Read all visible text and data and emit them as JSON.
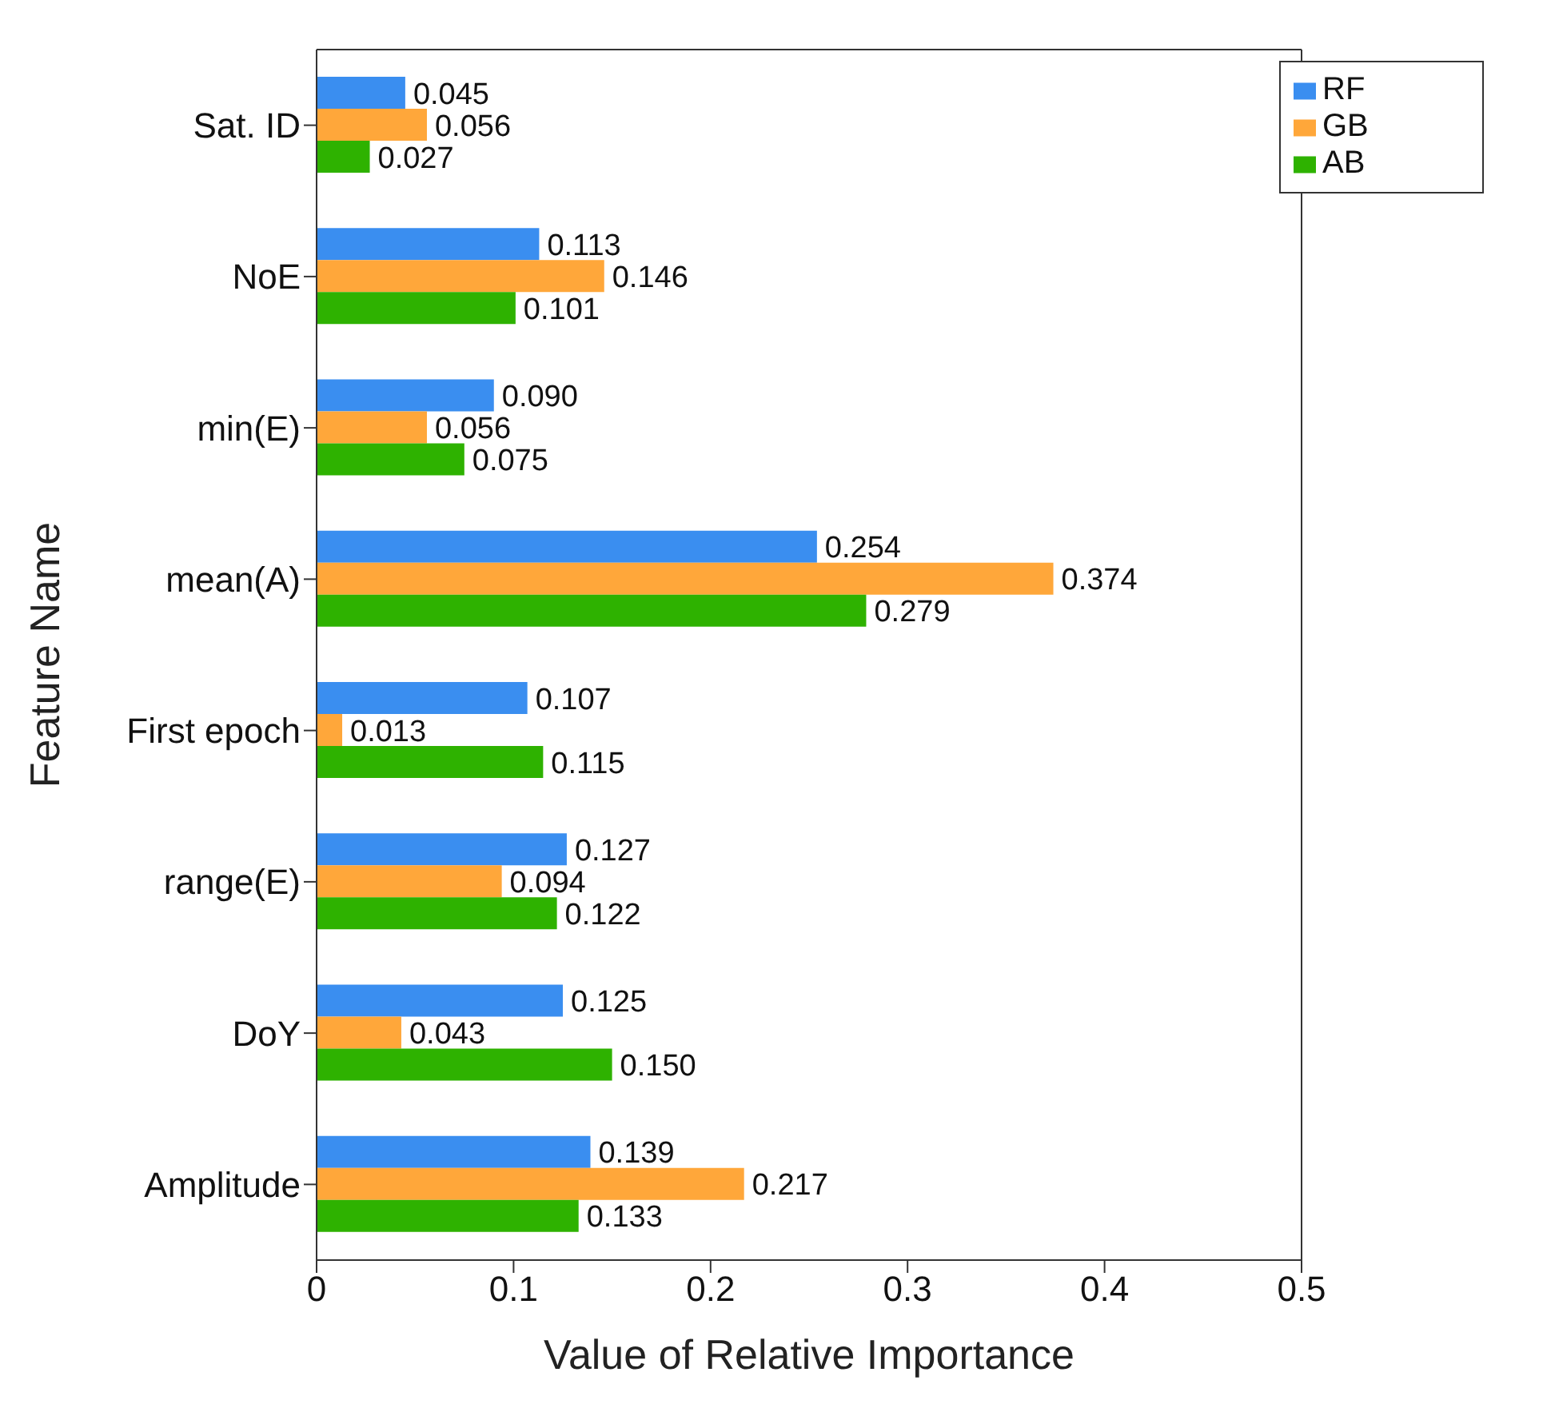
{
  "chart_data": {
    "type": "bar",
    "orientation": "horizontal",
    "xlabel": "Value of Relative Importance",
    "ylabel": "Feature Name",
    "categories": [
      "Sat. ID",
      "NoE",
      "min(E)",
      "mean(A)",
      "First epoch",
      "range(E)",
      "DoY",
      "Amplitude"
    ],
    "series": [
      {
        "name": "RF",
        "color": "#3a8ef0",
        "values": [
          0.045,
          0.113,
          0.09,
          0.254,
          0.107,
          0.127,
          0.125,
          0.139
        ],
        "value_labels": [
          "0.045",
          "0.113",
          "0.090",
          "0.254",
          "0.107",
          "0.127",
          "0.125",
          "0.139"
        ]
      },
      {
        "name": "GB",
        "color": "#ffa73a",
        "values": [
          0.056,
          0.146,
          0.056,
          0.374,
          0.013,
          0.094,
          0.043,
          0.217
        ],
        "value_labels": [
          "0.056",
          "0.146",
          "0.056",
          "0.374",
          "0.013",
          "0.094",
          "0.043",
          "0.217"
        ]
      },
      {
        "name": "AB",
        "color": "#2eb200",
        "values": [
          0.027,
          0.101,
          0.075,
          0.279,
          0.115,
          0.122,
          0.15,
          0.133
        ],
        "value_labels": [
          "0.027",
          "0.101",
          "0.075",
          "0.279",
          "0.115",
          "0.122",
          "0.150",
          "0.133"
        ]
      }
    ],
    "xlim": [
      0,
      0.5
    ],
    "xticks": [
      0,
      0.1,
      0.2,
      0.3,
      0.4,
      0.5
    ],
    "grid": false,
    "legend": "top right"
  }
}
